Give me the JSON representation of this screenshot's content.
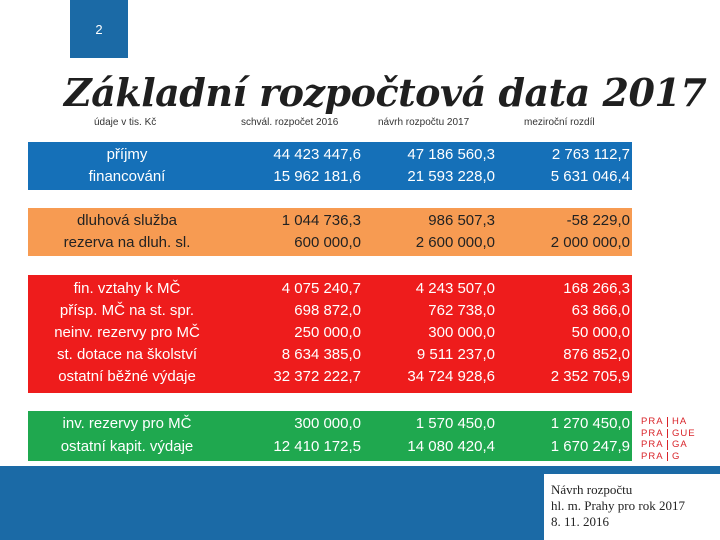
{
  "slide": {
    "number": "2",
    "title": "Základní rozpočtová data 2017"
  },
  "header": {
    "col0": "údaje v tis. Kč",
    "col1": "schvál. rozpočet 2016",
    "col2": "návrh rozpočtu 2017",
    "col3": "meziroční rozdíl"
  },
  "bands": [
    {
      "color": "#1570b8",
      "rows": [
        {
          "label": "příjmy",
          "v2016": "44 423 447,6",
          "v2017": "47 186 560,3",
          "diff": "2 763 112,7"
        },
        {
          "label": "financování",
          "v2016": "15 962 181,6",
          "v2017": "21 593 228,0",
          "diff": "5 631 046,4"
        }
      ]
    },
    {
      "color": "#f79b52",
      "rows": [
        {
          "label": "dluhová služba",
          "v2016": "1 044 736,3",
          "v2017": "986 507,3",
          "diff": "-58 229,0"
        },
        {
          "label": "rezerva na dluh. sl.",
          "v2016": "600 000,0",
          "v2017": "2 600 000,0",
          "diff": "2 000 000,0"
        }
      ]
    },
    {
      "color": "#ee1c1c",
      "rows": [
        {
          "label": "fin. vztahy k MČ",
          "v2016": "4 075 240,7",
          "v2017": "4 243 507,0",
          "diff": "168 266,3"
        },
        {
          "label": "přísp. MČ na st. spr.",
          "v2016": "698 872,0",
          "v2017": "762 738,0",
          "diff": "63 866,0"
        },
        {
          "label": "neinv. rezervy pro MČ",
          "v2016": "250 000,0",
          "v2017": "300 000,0",
          "diff": "50 000,0"
        },
        {
          "label": "st. dotace na školství",
          "v2016": "8 634 385,0",
          "v2017": "9 511 237,0",
          "diff": "876 852,0"
        },
        {
          "label": "ostatní běžné výdaje",
          "v2016": "32 372 222,7",
          "v2017": "34 724 928,6",
          "diff": "2 352 705,9"
        }
      ]
    },
    {
      "color": "#1fa84f",
      "rows": [
        {
          "label": "inv. rezervy pro MČ",
          "v2016": "300 000,0",
          "v2017": "1 570 450,0",
          "diff": "1 270 450,0"
        },
        {
          "label": "ostatní kapit. výdaje",
          "v2016": "12 410 172,5",
          "v2017": "14 080 420,4",
          "diff": "1 670 247,9"
        }
      ]
    }
  ],
  "logo": {
    "left": [
      "PRA",
      "PRA",
      "PRA",
      "PRA"
    ],
    "right": [
      "HA",
      "GUE",
      "GA",
      "G"
    ]
  },
  "footer": {
    "line1": "Návrh rozpočtu",
    "line2": "hl. m. Prahy pro rok 2017",
    "line3": "8. 11. 2016"
  }
}
